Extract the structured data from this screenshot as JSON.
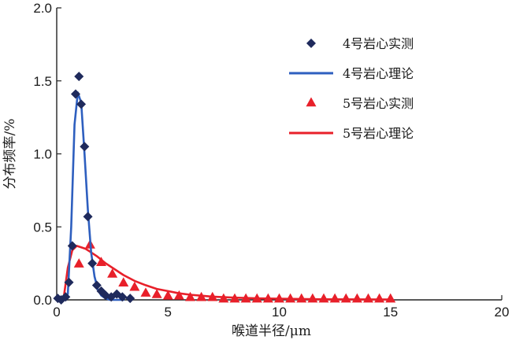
{
  "chart_data": {
    "type": "line",
    "title": "",
    "xlabel": "喉道半径/μm",
    "ylabel": "分布频率/%",
    "xlim": [
      0,
      20
    ],
    "ylim": [
      0,
      2.0
    ],
    "xticks": [
      "0",
      "5",
      "10",
      "15",
      "20"
    ],
    "yticks": [
      "0.0",
      "0.5",
      "1.0",
      "1.5",
      "2.0"
    ],
    "grid": false,
    "legend_position": "top-right",
    "series": [
      {
        "name": "4号岩心实测",
        "kind": "scatter",
        "marker": "diamond",
        "color": "#1f2a5c",
        "x": [
          0.05,
          0.2,
          0.4,
          0.55,
          0.7,
          0.85,
          1.0,
          1.1,
          1.25,
          1.4,
          1.6,
          1.8,
          2.0,
          2.2,
          2.45,
          2.7,
          2.95,
          3.3
        ],
        "y": [
          0.01,
          0.0,
          0.02,
          0.12,
          0.37,
          1.41,
          1.53,
          1.34,
          1.05,
          0.57,
          0.25,
          0.1,
          0.06,
          0.03,
          0.02,
          0.04,
          0.02,
          0.01
        ]
      },
      {
        "name": "4号岩心理论",
        "kind": "line",
        "color": "#2e5fbf",
        "x": [
          0.1,
          0.3,
          0.5,
          0.65,
          0.8,
          0.95,
          1.1,
          1.25,
          1.4,
          1.55,
          1.7,
          1.85,
          2.0,
          2.2,
          2.4,
          2.7,
          3.0
        ],
        "y": [
          0.0,
          0.0,
          0.04,
          0.5,
          1.2,
          1.42,
          1.35,
          1.0,
          0.62,
          0.32,
          0.16,
          0.07,
          0.03,
          0.01,
          0.0,
          0.0,
          0.0
        ]
      },
      {
        "name": "5号岩心实测",
        "kind": "scatter",
        "marker": "triangle",
        "color": "#e8202a",
        "x": [
          1.0,
          1.5,
          2.0,
          2.5,
          3.0,
          3.5,
          4.0,
          4.5,
          5.0,
          5.5,
          6.0,
          6.5,
          7.0,
          7.5,
          8.0,
          8.5,
          9.0,
          9.5,
          10.0,
          10.5,
          11.0,
          11.5,
          12.0,
          12.5,
          13.0,
          13.5,
          14.0,
          14.5,
          15.0
        ],
        "y": [
          0.25,
          0.38,
          0.26,
          0.18,
          0.12,
          0.09,
          0.05,
          0.04,
          0.03,
          0.03,
          0.02,
          0.02,
          0.02,
          0.01,
          0.01,
          0.01,
          0.01,
          0.01,
          0.01,
          0.01,
          0.01,
          0.01,
          0.01,
          0.01,
          0.01,
          0.01,
          0.01,
          0.01,
          0.01
        ]
      },
      {
        "name": "5号岩心理论",
        "kind": "line",
        "color": "#e8202a",
        "x": [
          0.3,
          0.5,
          0.7,
          0.9,
          1.1,
          1.3,
          1.5,
          1.8,
          2.2,
          2.6,
          3.0,
          3.5,
          4.0,
          4.5,
          5.0,
          5.5,
          6.0,
          7.0,
          8.0,
          9.0,
          10.0,
          12.0,
          15.0
        ],
        "y": [
          0.0,
          0.22,
          0.34,
          0.37,
          0.36,
          0.35,
          0.33,
          0.3,
          0.25,
          0.21,
          0.17,
          0.13,
          0.1,
          0.075,
          0.06,
          0.045,
          0.035,
          0.022,
          0.015,
          0.01,
          0.008,
          0.004,
          0.002
        ]
      }
    ]
  }
}
